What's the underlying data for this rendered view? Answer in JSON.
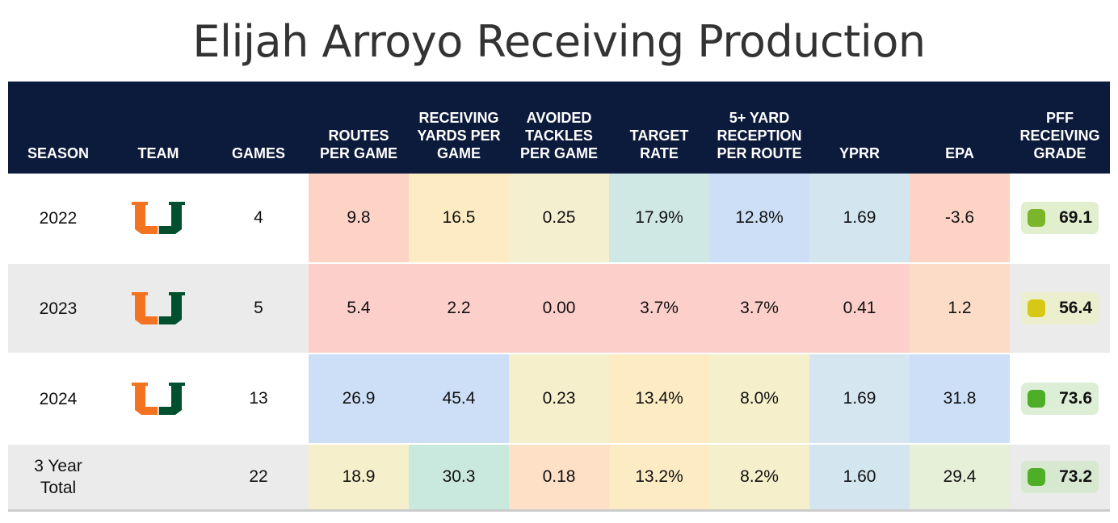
{
  "title": "Elijah Arroyo Receiving Production",
  "chart_data": {
    "type": "table",
    "columns": [
      "SEASON",
      "TEAM",
      "GAMES",
      "ROUTES PER GAME",
      "RECEIVING YARDS PER GAME",
      "AVOIDED TACKLES PER GAME",
      "TARGET RATE",
      "5+ YARD RECEPTION PER ROUTE",
      "YPRR",
      "EPA",
      "PFF RECEIVING GRADE"
    ],
    "rows": [
      {
        "season": "2022",
        "team": "miami-u-logo",
        "games": "4",
        "routes": "9.8",
        "yards": "16.5",
        "avoided": "0.25",
        "target_rate": "17.9%",
        "five_plus": "12.8%",
        "yprr": "1.69",
        "epa": "-3.6",
        "grade": "69.1"
      },
      {
        "season": "2023",
        "team": "miami-u-logo",
        "games": "5",
        "routes": "5.4",
        "yards": "2.2",
        "avoided": "0.00",
        "target_rate": "3.7%",
        "five_plus": "3.7%",
        "yprr": "0.41",
        "epa": "1.2",
        "grade": "56.4"
      },
      {
        "season": "2024",
        "team": "miami-u-logo",
        "games": "13",
        "routes": "26.9",
        "yards": "45.4",
        "avoided": "0.23",
        "target_rate": "13.4%",
        "five_plus": "8.0%",
        "yprr": "1.69",
        "epa": "31.8",
        "grade": "73.6"
      },
      {
        "season": "3 Year Total",
        "team": "",
        "games": "22",
        "routes": "18.9",
        "yards": "30.3",
        "avoided": "0.18",
        "target_rate": "13.2%",
        "five_plus": "8.2%",
        "yprr": "1.60",
        "epa": "29.4",
        "grade": "73.2"
      }
    ]
  },
  "header": {
    "season": "SEASON",
    "team": "TEAM",
    "games": "GAMES",
    "routes": "ROUTES PER GAME",
    "yards": "RECEIVING YARDS PER GAME",
    "avoided": "AVOIDED TACKLES PER GAME",
    "target_rate": "TARGET RATE",
    "five_plus": "5+ YARD RECEPTION PER ROUTE",
    "yprr": "YPRR",
    "epa": "EPA",
    "grade": "PFF RECEIVING GRADE"
  },
  "cell_colors": [
    [
      "#fdd3c6",
      "#fdecc3",
      "#f3efcf",
      "#cfe8e4",
      "#cddff6",
      "#d3e6ef",
      "#fdd3c6"
    ],
    [
      "#fdcfca",
      "#fdcfca",
      "#fdcfca",
      "#fdcfca",
      "#fdcfca",
      "#fdcfca",
      "#fcdcc6"
    ],
    [
      "#cddff6",
      "#cddff6",
      "#f5efcb",
      "#fdecc3",
      "#f5efcb",
      "#d6e6f1",
      "#cddff6"
    ],
    [
      "#f5efcb",
      "#c9e9df",
      "#fde0c6",
      "#fdecc3",
      "#f5efcb",
      "#d3e6ef",
      "#e6efd8"
    ]
  ],
  "grade_colors": [
    {
      "bg": "#e2efcf",
      "dot": "#7ab52a"
    },
    {
      "bg": "#ecefcd",
      "dot": "#d6c814"
    },
    {
      "bg": "#dcefd6",
      "dot": "#4eae26"
    },
    {
      "bg": "#d6e8d0",
      "dot": "#4eae26"
    }
  ],
  "colors": {
    "header_bg": "#0c1a3c",
    "logo_orange": "#f47321",
    "logo_green": "#005030",
    "alt_row": "#ebebeb"
  }
}
